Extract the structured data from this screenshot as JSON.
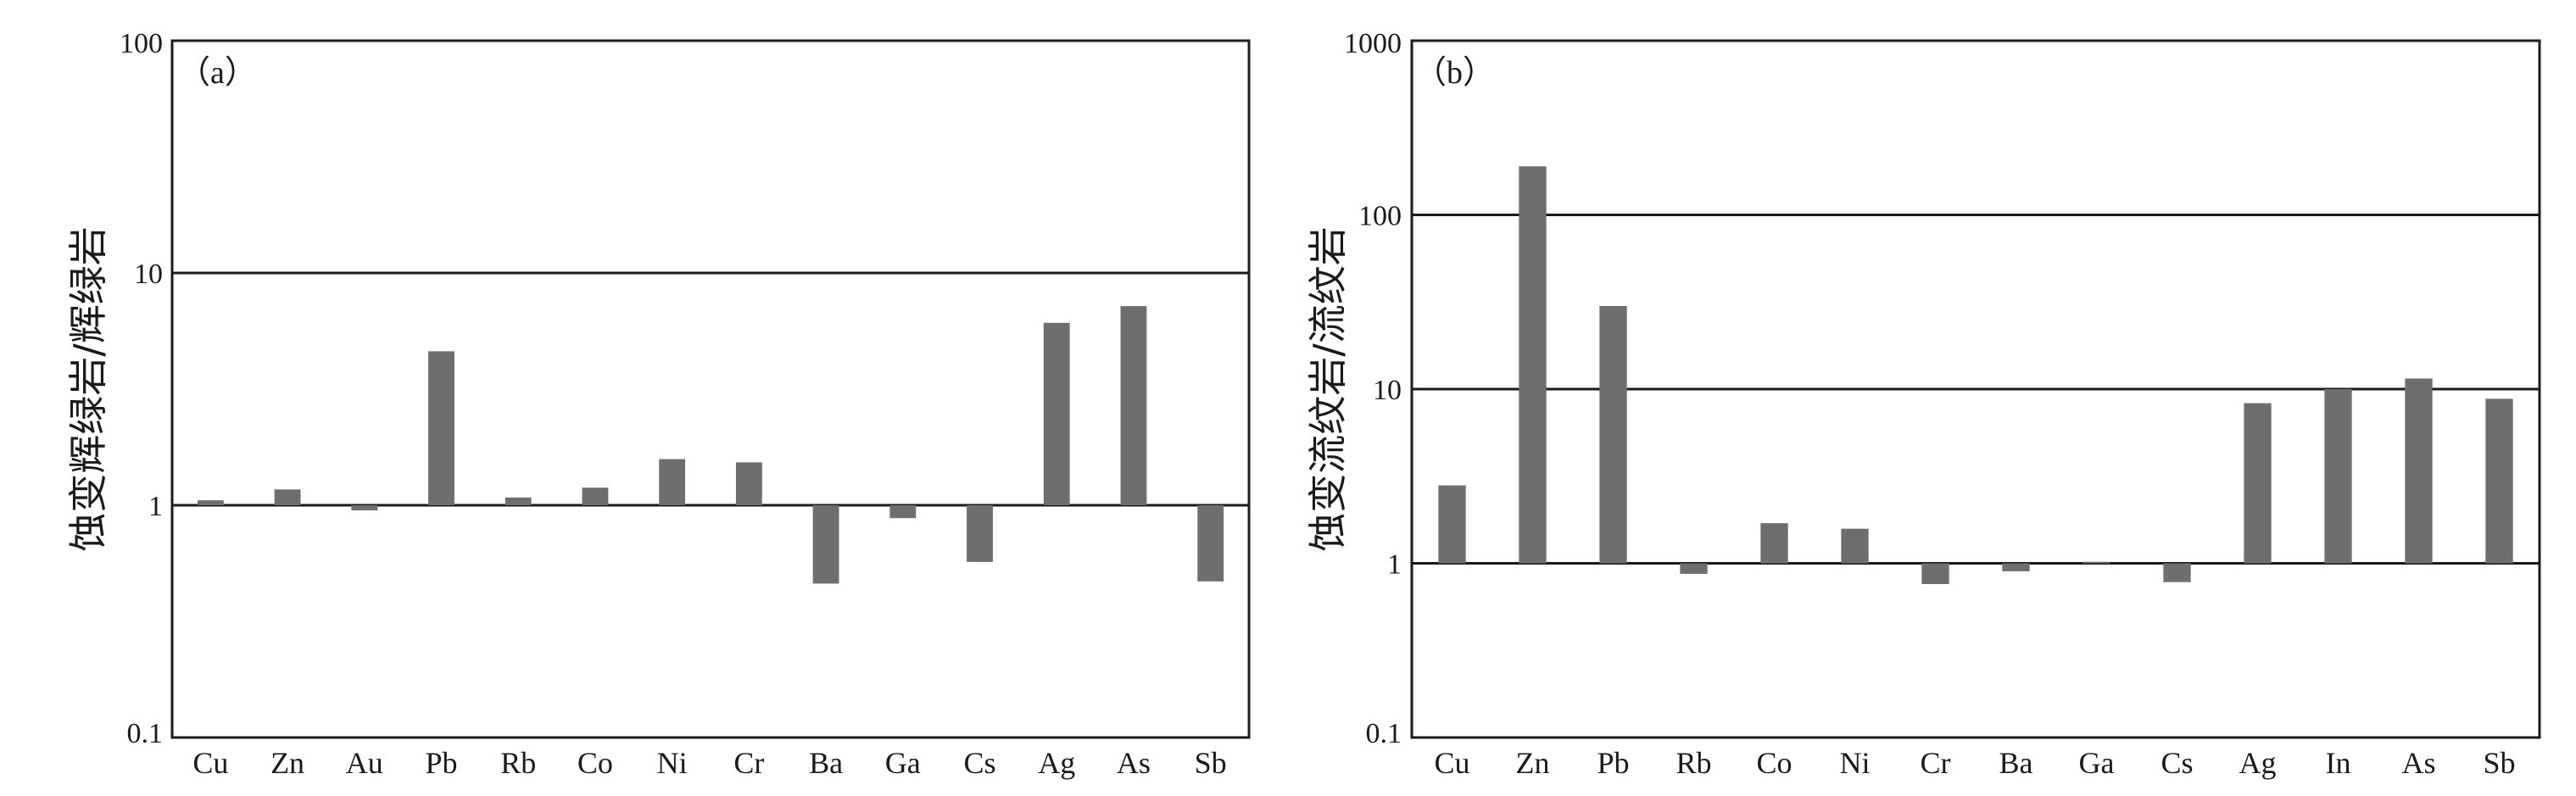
{
  "chart_data": [
    {
      "type": "bar",
      "panel_label": "（a）",
      "scale": "log",
      "baseline": 1,
      "ylim": [
        0.1,
        100
      ],
      "yticks": [
        "100",
        "10",
        "1",
        "0.1"
      ],
      "ytick_values": [
        100,
        10,
        1,
        0.1
      ],
      "gridlines": [
        10,
        1
      ],
      "ylabel": "蚀变辉绿岩/辉绿岩",
      "xlabel": "",
      "categories": [
        "Cu",
        "Zn",
        "Au",
        "Pb",
        "Rb",
        "Co",
        "Ni",
        "Cr",
        "Ba",
        "Ga",
        "Cs",
        "Ag",
        "As",
        "Sb"
      ],
      "values": [
        1.05,
        1.17,
        0.95,
        4.6,
        1.08,
        1.19,
        1.58,
        1.53,
        0.46,
        0.88,
        0.57,
        6.1,
        7.2,
        0.47
      ],
      "bar_color": "#6e6e6e"
    },
    {
      "type": "bar",
      "panel_label": "（b）",
      "scale": "log",
      "baseline": 1,
      "ylim": [
        0.1,
        1000
      ],
      "yticks": [
        "1000",
        "100",
        "10",
        "1",
        "0.1"
      ],
      "ytick_values": [
        1000,
        100,
        10,
        1,
        0.1
      ],
      "gridlines": [
        100,
        10,
        1
      ],
      "ylabel": "蚀变流纹岩/流纹岩",
      "xlabel": "",
      "categories": [
        "Cu",
        "Zn",
        "Pb",
        "Rb",
        "Co",
        "Ni",
        "Cr",
        "Ba",
        "Ga",
        "Cs",
        "Ag",
        "In",
        "As",
        "Sb"
      ],
      "values": [
        2.8,
        190,
        30,
        0.87,
        1.7,
        1.58,
        0.76,
        0.9,
        1.02,
        0.78,
        8.3,
        10,
        11.5,
        8.8
      ],
      "bar_color": "#6e6e6e"
    }
  ]
}
